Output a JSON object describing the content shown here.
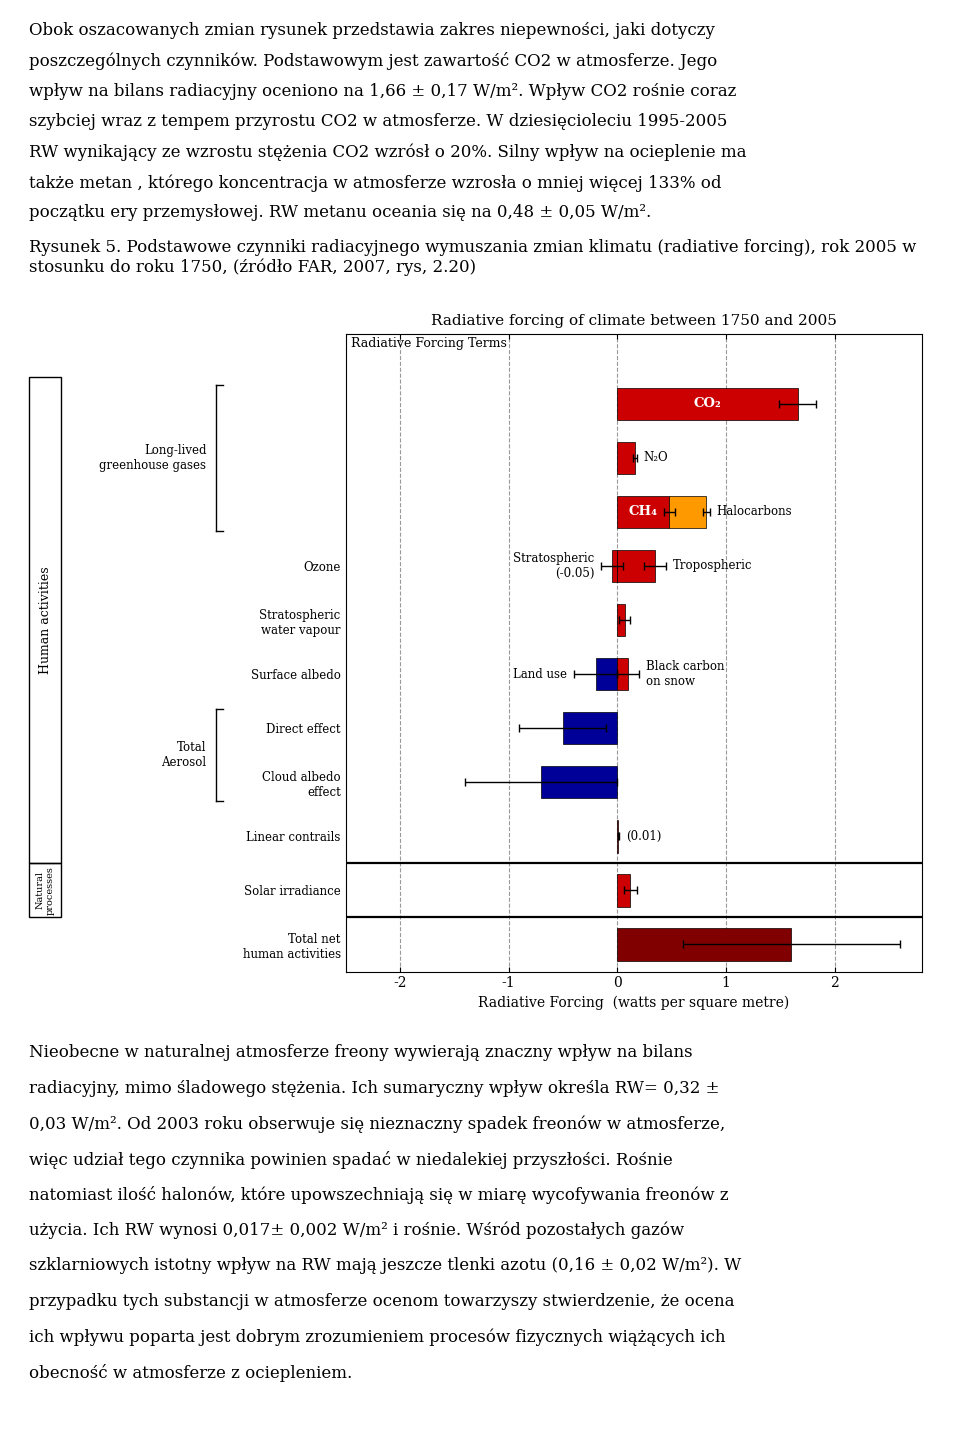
{
  "chart_data": {
    "type": "bar",
    "orientation": "horizontal",
    "title": "Radiative forcing of climate between 1750 and 2005",
    "subtitle": "Radiative Forcing Terms",
    "xlabel": "Radiative Forcing  (watts per square metre)",
    "categories": [
      null,
      null,
      null,
      "Ozone",
      "Stratospheric\nwater vapour",
      "Surface albedo",
      "Direct effect",
      "Cloud albedo\neffect",
      "Linear contrails",
      "Solar irradiance",
      "Total net\nhuman activities"
    ],
    "bars": [
      {
        "category": 0,
        "name": "CO₂",
        "value": 1.66,
        "error": 0.17,
        "color": "#cc0000"
      },
      {
        "category": 1,
        "name": "N₂O",
        "value": 0.16,
        "error": 0.02,
        "color": "#cc0000"
      },
      {
        "category": 2,
        "name": "CH₄",
        "value": 0.48,
        "error": 0.05,
        "color": "#cc0000"
      },
      {
        "category": 2,
        "name": "Halocarbons",
        "value": 0.34,
        "error": 0.03,
        "color": "#ff9900"
      },
      {
        "category": 3,
        "name": "Stratospheric",
        "value": -0.05,
        "error": 0.1,
        "color": "#cc0000",
        "value_label": "(-0.05)"
      },
      {
        "category": 3,
        "name": "Tropospheric",
        "value": 0.35,
        "error": 0.1,
        "color": "#cc0000"
      },
      {
        "category": 4,
        "value": 0.07,
        "error": 0.05,
        "color": "#cc0000"
      },
      {
        "category": 5,
        "name": "Land use",
        "value": -0.2,
        "error": 0.2,
        "color": "#000099"
      },
      {
        "category": 5,
        "name": "Black carbon\non snow",
        "value": 0.1,
        "error": 0.1,
        "color": "#cc0000"
      },
      {
        "category": 6,
        "value": -0.5,
        "error": 0.4,
        "color": "#000099"
      },
      {
        "category": 7,
        "value": -0.7,
        "error": 0.7,
        "color": "#000099"
      },
      {
        "category": 8,
        "value": 0.01,
        "error": 0.007,
        "color": "#cc0000",
        "value_label": "(0.01)"
      },
      {
        "category": 9,
        "value": 0.12,
        "error": 0.06,
        "color": "#cc0000"
      },
      {
        "category": 10,
        "value": 1.6,
        "error": 1.0,
        "color": "#800000"
      }
    ],
    "groups": [
      {
        "label": "Long-lived\ngreenhouse gases",
        "first": 0,
        "last": 2
      },
      {
        "label": "Total\nAerosol",
        "first": 6,
        "last": 7
      }
    ],
    "sections": [
      {
        "label": "Human activities",
        "first": 0,
        "last": 8
      },
      {
        "label": "Natural\nprocesses",
        "first": 9,
        "last": 9
      }
    ],
    "xlim": [
      -2.5,
      2.8
    ],
    "xticks": [
      -2,
      -1,
      0,
      1,
      2
    ],
    "grid": true,
    "text_before": [
      "Obok oszacowanych zmian rysunek przedstawia zakres niepewności, jaki dotyczy",
      "poszczególnych czynników. Podstawowym jest zawartość CO2 w atmosferze. Jego",
      "wpływ na bilans radiacyjny oceniono na 1,66 ± 0,17 W/m². Wpływ CO2 rośnie coraz",
      "szybciej wraz z tempem przyrostu CO2 w atmosferze. W dziesięcioleciu 1995-2005",
      "RW wynikający ze wzrostu stężenia CO2 wzrósł o 20%. Silny wpływ na ocieplenie ma",
      "także metan , którego koncentracja w atmosferze wzrosła o mniej więcej 133% od",
      "początku ery przemysłowej. RW metanu oceania się na 0,48 ± 0,05 W/m²."
    ],
    "caption": "Rysunek 5. Podstawowe czynniki radiacyjnego wymuszania zmian klimatu (radiative forcing), rok 2005 w stosunku do roku 1750, (źródło FAR, 2007, rys, 2.20)",
    "text_after": [
      "Nieobecne w naturalnej atmosferze freony wywierają znaczny wpływ na bilans",
      "radiacyjny, mimo śladowego stężenia. Ich sumaryczny wpływ określa RW= 0,32 ±",
      "0,03 W/m². Od 2003 roku obserwuje się nieznaczny spadek freonów w atmosferze,",
      "więc udział tego czynnika powinien spadać w niedalekiej przyszłości. Rośnie",
      "natomiast ilość halonów, które upowszechniają się w miarę wycofywania freonów z",
      "użycia. Ich RW wynosi 0,017± 0,002 W/m² i rośnie. Wśród pozostałych gazów",
      "szklarniowych istotny wpływ na RW mają jeszcze tlenki azotu (0,16 ± 0,02 W/m²). W",
      "przypadku tych substancji w atmosferze ocenom towarzyszy stwierdzenie, że ocena",
      "ich wpływu poparta jest dobrym zrozumieniem procesów fizycznych wiążących ich",
      "obecność w atmosferze z ociepleniem."
    ]
  }
}
